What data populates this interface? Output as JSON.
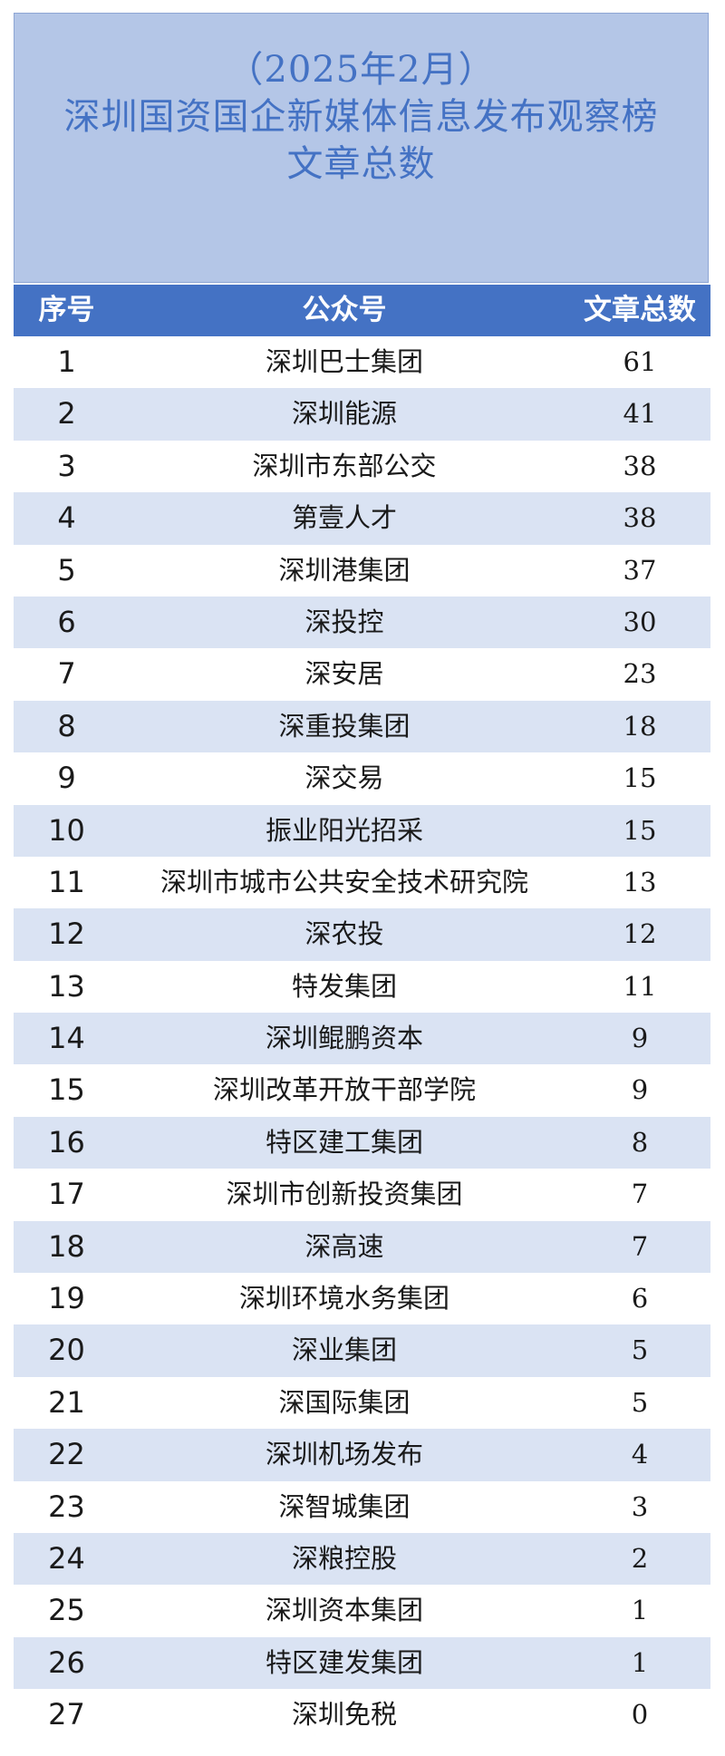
{
  "title": {
    "line1": "（2025年2月）",
    "line2": "深圳国资国企新媒体信息发布观察榜",
    "line3": "文章总数"
  },
  "columns": {
    "index": "序号",
    "account": "公众号",
    "count": "文章总数"
  },
  "rows": [
    {
      "index": "1",
      "account": "深圳巴士集团",
      "count": "61"
    },
    {
      "index": "2",
      "account": "深圳能源",
      "count": "41"
    },
    {
      "index": "3",
      "account": "深圳市东部公交",
      "count": "38"
    },
    {
      "index": "4",
      "account": "第壹人才",
      "count": "38"
    },
    {
      "index": "5",
      "account": "深圳港集团",
      "count": "37"
    },
    {
      "index": "6",
      "account": "深投控",
      "count": "30"
    },
    {
      "index": "7",
      "account": "深安居",
      "count": "23"
    },
    {
      "index": "8",
      "account": "深重投集团",
      "count": "18"
    },
    {
      "index": "9",
      "account": "深交易",
      "count": "15"
    },
    {
      "index": "10",
      "account": "振业阳光招采",
      "count": "15"
    },
    {
      "index": "11",
      "account": "深圳市城市公共安全技术研究院",
      "count": "13"
    },
    {
      "index": "12",
      "account": "深农投",
      "count": "12"
    },
    {
      "index": "13",
      "account": "特发集团",
      "count": "11"
    },
    {
      "index": "14",
      "account": "深圳鲲鹏资本",
      "count": "9"
    },
    {
      "index": "15",
      "account": "深圳改革开放干部学院",
      "count": "9"
    },
    {
      "index": "16",
      "account": "特区建工集团",
      "count": "8"
    },
    {
      "index": "17",
      "account": "深圳市创新投资集团",
      "count": "7"
    },
    {
      "index": "18",
      "account": "深高速",
      "count": "7"
    },
    {
      "index": "19",
      "account": "深圳环境水务集团",
      "count": "6"
    },
    {
      "index": "20",
      "account": "深业集团",
      "count": "5"
    },
    {
      "index": "21",
      "account": "深国际集团",
      "count": "5"
    },
    {
      "index": "22",
      "account": "深圳机场发布",
      "count": "4"
    },
    {
      "index": "23",
      "account": "深智城集团",
      "count": "3"
    },
    {
      "index": "24",
      "account": "深粮控股",
      "count": "2"
    },
    {
      "index": "25",
      "account": "深圳资本集团",
      "count": "1"
    },
    {
      "index": "26",
      "account": "特区建发集团",
      "count": "1"
    },
    {
      "index": "27",
      "account": "深圳免税",
      "count": "0"
    }
  ],
  "colors": {
    "header_bg": "#b4c6e7",
    "title_text": "#4472c4",
    "column_header_bg": "#4472c4",
    "alt_row_bg": "#dae3f3"
  }
}
